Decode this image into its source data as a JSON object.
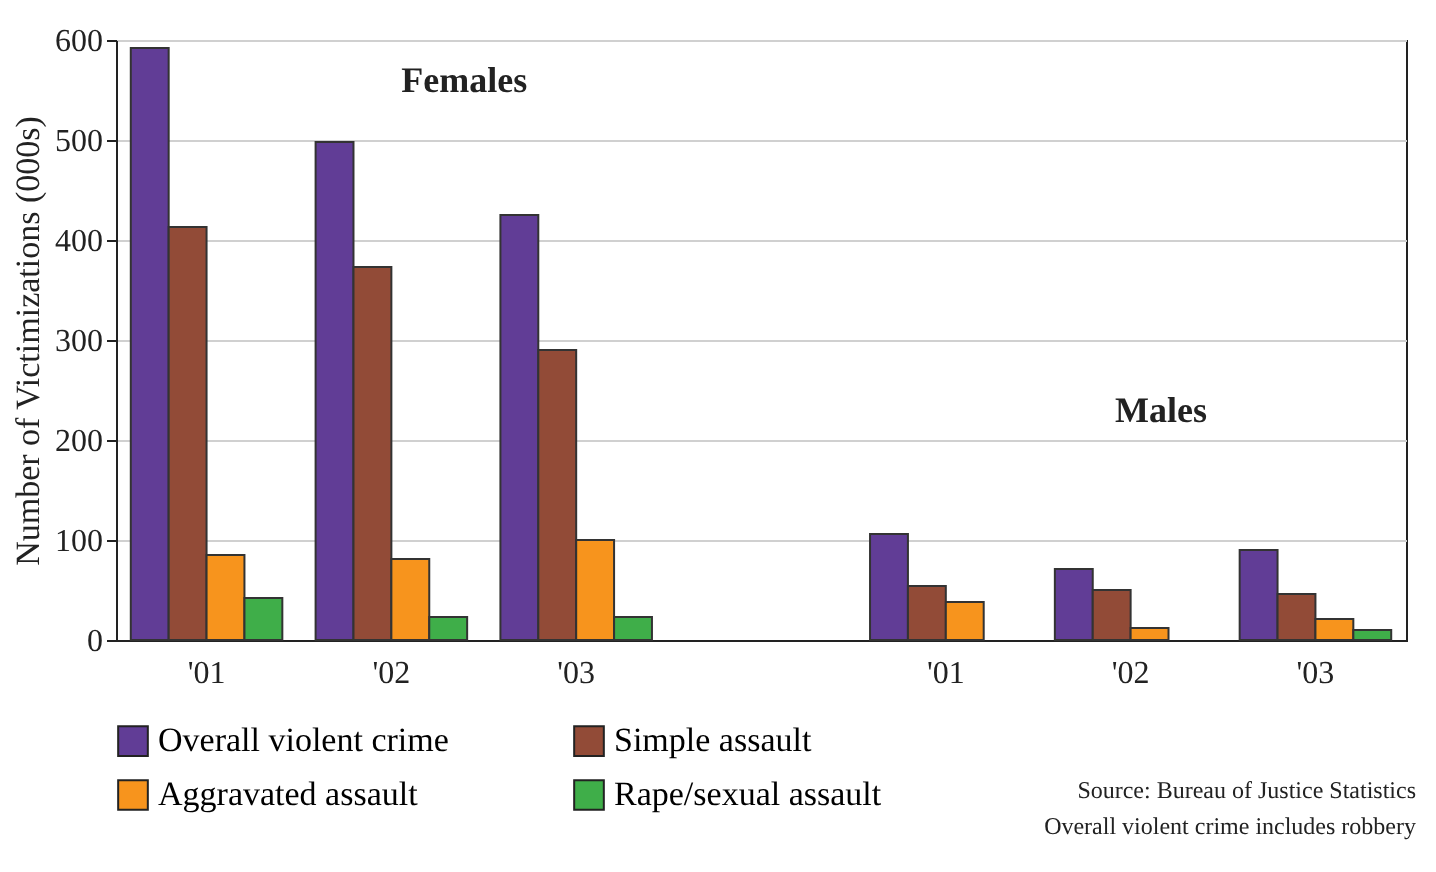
{
  "chart_data": {
    "type": "bar",
    "ylabel": "Number of Victimizations (000s)",
    "categories": [
      "'01",
      "'02",
      "'03",
      null,
      "'01",
      "'02",
      "'03"
    ],
    "series": [
      {
        "name": "Overall violent crime",
        "color": "#613d96",
        "values": [
          592,
          498,
          425,
          null,
          106,
          71,
          90
        ]
      },
      {
        "name": "Simple assault",
        "color": "#924b37",
        "values": [
          413,
          373,
          290,
          null,
          54,
          50,
          46
        ]
      },
      {
        "name": "Aggravated assault",
        "color": "#f7941d",
        "values": [
          85,
          81,
          100,
          null,
          38,
          12,
          21
        ]
      },
      {
        "name": "Rape/sexual assault",
        "color": "#3fae49",
        "values": [
          42,
          23,
          23,
          null,
          null,
          null,
          10
        ]
      }
    ],
    "ylim": [
      0,
      600
    ],
    "yticks": [
      0,
      100,
      200,
      300,
      400,
      500,
      600
    ],
    "grid": "y",
    "legend": "bottom",
    "annotations": [
      "Females",
      "Males",
      "Source: Bureau of Justice Statistics",
      "Overall violent crime includes robbery"
    ]
  }
}
